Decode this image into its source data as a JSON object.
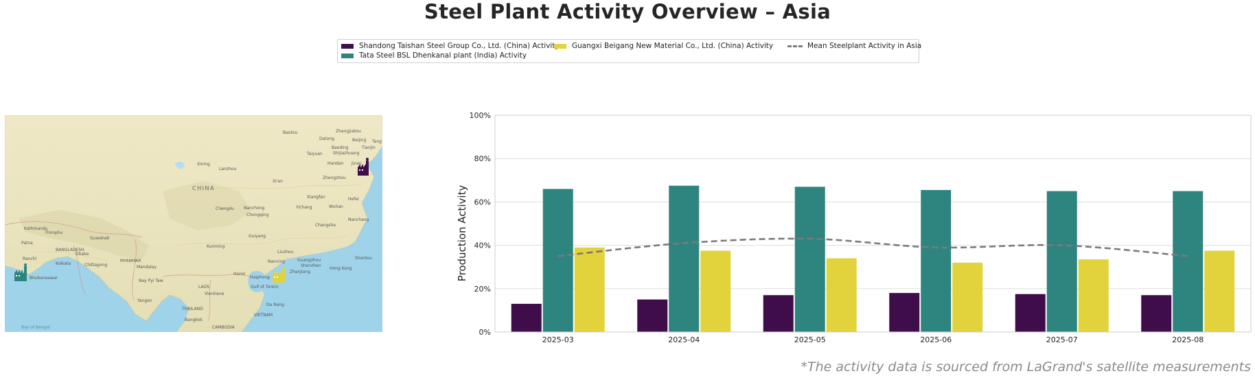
{
  "title": "Steel Plant Activity Overview – Asia",
  "colors": {
    "shandong": "#3f0e4a",
    "tata": "#2e8580",
    "guangxi": "#e2d33c",
    "mean": "#7a7a7a",
    "grid": "#dddddd"
  },
  "legend": {
    "items": [
      {
        "label": "Shandong Taishan Steel Group Co., Ltd. (China) Activity",
        "kind": "swatch",
        "color": "#3f0e4a"
      },
      {
        "label": "Tata Steel BSL Dhenkanal plant (India) Activity",
        "kind": "swatch",
        "color": "#2e8580"
      },
      {
        "label": "Guangxi Beigang New Material Co., Ltd. (China) Activity",
        "kind": "swatch",
        "color": "#e2d33c"
      },
      {
        "label": "Mean Steelplant Activity in Asia",
        "kind": "dash",
        "color": "#7a7a7a"
      }
    ]
  },
  "map": {
    "country_label": "CHINA",
    "places": [
      "Baotou",
      "Zhangjiakou",
      "Datong",
      "Beijing",
      "Tang",
      "Baoding",
      "Tianjin",
      "Taiyuan",
      "Shijiazhuang",
      "Handan",
      "Jinan",
      "Xining",
      "Lanzhou",
      "Zhengzhou",
      "Xi'an",
      "Xiangfan",
      "Wuhan",
      "Chengdu",
      "Nanchong",
      "Yichang",
      "Changsha",
      "Chongqing",
      "Hefei",
      "Nanchang",
      "Kathmandu",
      "Thimphu",
      "Guwahati",
      "Patna",
      "Dhaka",
      "BANGLADESH",
      "Kolkata",
      "Ranchi",
      "Chittagong",
      "Mandalay",
      "MYANMAR",
      "Kunming",
      "Guiyang",
      "Liuzhou",
      "Nanning",
      "Guangzhou",
      "Shenzhen",
      "Hong Kong",
      "Shantou",
      "Hanoi",
      "Haiphong",
      "Zhanjiang",
      "Gulf of Tonkin",
      "LAOS",
      "Nay Pyi Taw",
      "Vientiane",
      "Yangon",
      "THAILAND",
      "Da Nang",
      "VIETNAM",
      "Bangkok",
      "CAMBODIA",
      "Bay of Bengal",
      "Bhubaneswar"
    ],
    "plant_icons": [
      "factory-icon-shandong",
      "factory-icon-tata",
      "factory-icon-guangxi"
    ]
  },
  "chart_data": {
    "type": "bar",
    "categories": [
      "2025-03",
      "2025-04",
      "2025-05",
      "2025-06",
      "2025-07",
      "2025-08"
    ],
    "series": [
      {
        "name": "Shandong Taishan Steel Group Co., Ltd. (China) Activity",
        "values": [
          13,
          15,
          17,
          18,
          17.5,
          17
        ],
        "color": "#3f0e4a"
      },
      {
        "name": "Tata Steel BSL Dhenkanal plant (India) Activity",
        "values": [
          66,
          67.5,
          67,
          65.5,
          65,
          65
        ],
        "color": "#2e8580"
      },
      {
        "name": "Guangxi Beigang New Material Co., Ltd. (China) Activity",
        "values": [
          39,
          37.5,
          34,
          32,
          33.5,
          37.5
        ],
        "color": "#e2d33c"
      }
    ],
    "line_series": {
      "name": "Mean Steelplant Activity in Asia",
      "values": [
        35,
        41,
        43,
        39,
        40,
        35
      ],
      "style": "dashed",
      "color": "#7a7a7a"
    },
    "ylabel": "Production Activity",
    "xlabel": "",
    "ylim": [
      0,
      100
    ],
    "yticks": [
      "0%",
      "20%",
      "40%",
      "60%",
      "80%",
      "100%"
    ],
    "ytick_values": [
      0,
      20,
      40,
      60,
      80,
      100
    ],
    "grid": "horizontal",
    "legend_position": "top-center"
  },
  "footnote": "*The activity data is sourced from LaGrand's satellite measurements"
}
